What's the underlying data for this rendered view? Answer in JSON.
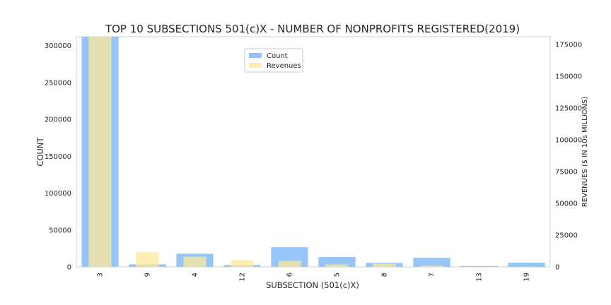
{
  "chart_data": {
    "type": "bar",
    "title": "TOP 10 SUBSECTIONS 501(c)X - NUMBER OF NONPROFITS REGISTERED(2019)",
    "xlabel": "SUBSECTION (501(c)X)",
    "ylabel": "COUNT",
    "y2label": "REVENUES ($ IN 10s MILLIONS)",
    "categories": [
      "3",
      "9",
      "4",
      "12",
      "6",
      "5",
      "8",
      "7",
      "13",
      "19"
    ],
    "series": [
      {
        "name": "Count",
        "axis": "left",
        "color": "#90c2f7",
        "values": [
          312000,
          3500,
          17800,
          2500,
          26700,
          13300,
          5400,
          12300,
          1200,
          5500
        ]
      },
      {
        "name": "Revenues",
        "axis": "right",
        "color": "#fce79a",
        "values": [
          181000,
          11500,
          8000,
          5300,
          4700,
          2000,
          2400,
          1000,
          150,
          200
        ]
      }
    ],
    "ylim": [
      0,
      312000
    ],
    "y2lim": [
      0,
      181000
    ],
    "yticks": [
      0,
      50000,
      100000,
      150000,
      200000,
      250000,
      300000
    ],
    "y2ticks": [
      0,
      25000,
      50000,
      75000,
      100000,
      125000,
      150000,
      175000
    ],
    "grid": false,
    "legend": "top-center"
  }
}
